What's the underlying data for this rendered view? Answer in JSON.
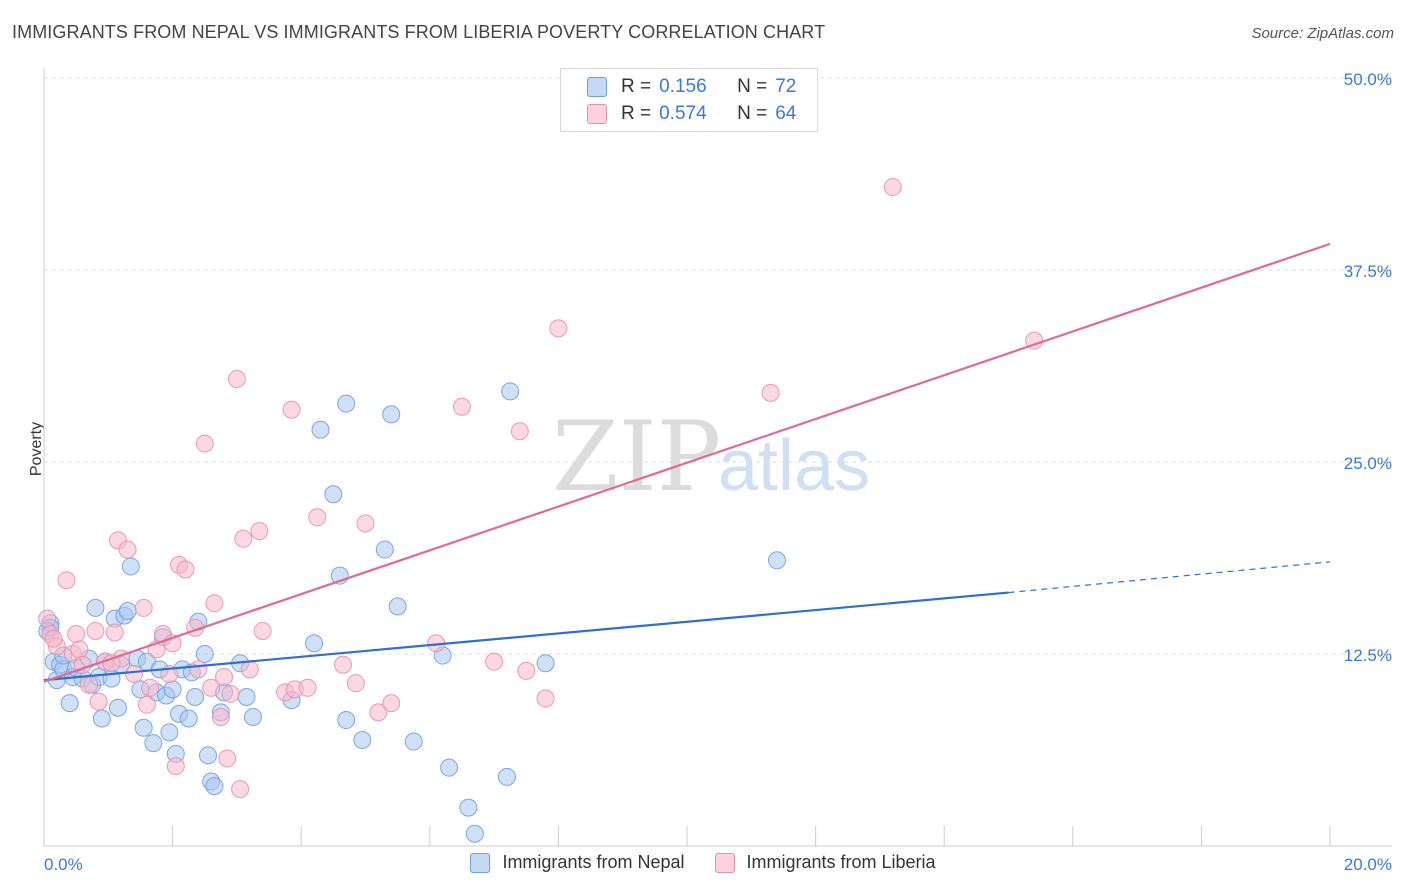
{
  "header": {
    "title": "IMMIGRANTS FROM NEPAL VS IMMIGRANTS FROM LIBERIA POVERTY CORRELATION CHART",
    "source": "Source: ZipAtlas.com"
  },
  "watermark": {
    "zip": "ZIP",
    "atlas": "atlas"
  },
  "legend_top": [
    {
      "r_key": "R =",
      "r_value": "0.156",
      "n_key": "N =",
      "n_value": "72",
      "color": "#a9c7f0"
    },
    {
      "r_key": "R =",
      "r_value": "0.574",
      "n_key": "N =",
      "n_value": "64",
      "color": "#f7b8cb"
    }
  ],
  "legend_bottom": [
    {
      "label": "Immigrants from Nepal",
      "color": "#a9c7f0"
    },
    {
      "label": "Immigrants from Liberia",
      "color": "#f7b8cb"
    }
  ],
  "chart_data": {
    "type": "scatter",
    "ylabel": "Poverty",
    "xlim": [
      0,
      20
    ],
    "ylim": [
      0,
      50
    ],
    "x_tick_labels": [
      {
        "value": 0,
        "label": "0.0%"
      },
      {
        "value": 20,
        "label": "20.0%"
      }
    ],
    "y_tick_labels": [
      {
        "value": 12.5,
        "label": "12.5%"
      },
      {
        "value": 25,
        "label": "25.0%"
      },
      {
        "value": 37.5,
        "label": "37.5%"
      },
      {
        "value": 50,
        "label": "50.0%"
      }
    ],
    "grid": true,
    "series": [
      {
        "name": "Immigrants from Nepal",
        "color": "#6f9fe0",
        "fill": "#a9c7f0",
        "trend": {
          "x": [
            0,
            15
          ],
          "y": [
            10.8,
            16.5
          ],
          "dashed_to": [
            20,
            18.5
          ],
          "color": "#2f6fd0"
        },
        "points": [
          [
            0.1,
            14.5
          ],
          [
            0.1,
            14.2
          ],
          [
            0.15,
            12.0
          ],
          [
            0.2,
            10.8
          ],
          [
            0.25,
            11.8
          ],
          [
            0.3,
            11.5
          ],
          [
            0.4,
            9.3
          ],
          [
            0.45,
            11.0
          ],
          [
            0.5,
            11.6
          ],
          [
            0.6,
            10.9
          ],
          [
            0.7,
            12.2
          ],
          [
            0.75,
            10.5
          ],
          [
            0.8,
            15.5
          ],
          [
            0.85,
            11.0
          ],
          [
            0.9,
            8.3
          ],
          [
            0.95,
            12.0
          ],
          [
            1.05,
            10.9
          ],
          [
            1.1,
            14.8
          ],
          [
            1.15,
            9.0
          ],
          [
            1.2,
            11.8
          ],
          [
            1.25,
            15.0
          ],
          [
            1.3,
            15.3
          ],
          [
            1.35,
            18.2
          ],
          [
            1.45,
            12.2
          ],
          [
            1.5,
            10.2
          ],
          [
            1.55,
            7.7
          ],
          [
            1.6,
            12.0
          ],
          [
            1.7,
            6.7
          ],
          [
            1.75,
            10.0
          ],
          [
            1.8,
            11.5
          ],
          [
            1.85,
            13.6
          ],
          [
            1.9,
            9.8
          ],
          [
            1.95,
            7.4
          ],
          [
            2.0,
            10.2
          ],
          [
            2.05,
            6.0
          ],
          [
            2.1,
            8.6
          ],
          [
            2.15,
            11.5
          ],
          [
            2.25,
            8.3
          ],
          [
            2.3,
            11.3
          ],
          [
            2.35,
            9.7
          ],
          [
            2.4,
            14.6
          ],
          [
            2.5,
            12.5
          ],
          [
            2.55,
            5.9
          ],
          [
            2.6,
            4.2
          ],
          [
            2.65,
            3.9
          ],
          [
            2.75,
            8.7
          ],
          [
            2.8,
            10.0
          ],
          [
            3.05,
            11.9
          ],
          [
            3.15,
            9.7
          ],
          [
            3.25,
            8.4
          ],
          [
            3.85,
            9.5
          ],
          [
            4.2,
            13.2
          ],
          [
            4.3,
            27.1
          ],
          [
            4.5,
            22.9
          ],
          [
            4.6,
            17.6
          ],
          [
            4.7,
            8.2
          ],
          [
            4.7,
            28.8
          ],
          [
            4.95,
            6.9
          ],
          [
            5.3,
            19.3
          ],
          [
            5.4,
            28.1
          ],
          [
            5.5,
            15.6
          ],
          [
            5.75,
            6.8
          ],
          [
            6.2,
            12.4
          ],
          [
            6.3,
            5.1
          ],
          [
            6.6,
            2.5
          ],
          [
            6.7,
            0.8
          ],
          [
            7.2,
            4.5
          ],
          [
            7.25,
            29.6
          ],
          [
            7.8,
            11.9
          ],
          [
            11.4,
            18.6
          ],
          [
            0.05,
            14.0
          ],
          [
            0.3,
            12.4
          ]
        ]
      },
      {
        "name": "Immigrants from Liberia",
        "color": "#e890ab",
        "fill": "#f7b8cb",
        "trend": {
          "x": [
            0,
            20
          ],
          "y": [
            10.7,
            39.2
          ],
          "color": "#e06a93"
        },
        "points": [
          [
            0.05,
            14.8
          ],
          [
            0.1,
            13.8
          ],
          [
            0.2,
            13.0
          ],
          [
            0.35,
            17.3
          ],
          [
            0.45,
            12.5
          ],
          [
            0.5,
            13.8
          ],
          [
            0.55,
            12.8
          ],
          [
            0.6,
            11.8
          ],
          [
            0.7,
            10.5
          ],
          [
            0.8,
            14.0
          ],
          [
            0.85,
            9.4
          ],
          [
            0.95,
            12.0
          ],
          [
            1.1,
            13.9
          ],
          [
            1.15,
            19.9
          ],
          [
            1.2,
            12.2
          ],
          [
            1.3,
            19.3
          ],
          [
            1.4,
            11.2
          ],
          [
            1.55,
            15.5
          ],
          [
            1.6,
            9.2
          ],
          [
            1.65,
            10.3
          ],
          [
            1.75,
            12.8
          ],
          [
            1.85,
            13.8
          ],
          [
            1.95,
            11.2
          ],
          [
            2.0,
            13.2
          ],
          [
            2.05,
            5.2
          ],
          [
            2.1,
            18.3
          ],
          [
            2.2,
            18.0
          ],
          [
            2.35,
            14.2
          ],
          [
            2.4,
            11.5
          ],
          [
            2.5,
            26.2
          ],
          [
            2.6,
            10.3
          ],
          [
            2.65,
            15.8
          ],
          [
            2.75,
            8.4
          ],
          [
            2.8,
            11.0
          ],
          [
            2.85,
            5.7
          ],
          [
            2.9,
            9.9
          ],
          [
            3.0,
            30.4
          ],
          [
            3.05,
            3.7
          ],
          [
            3.1,
            20.0
          ],
          [
            3.2,
            11.5
          ],
          [
            3.35,
            20.5
          ],
          [
            3.4,
            14.0
          ],
          [
            3.75,
            10.0
          ],
          [
            3.85,
            28.4
          ],
          [
            3.9,
            10.2
          ],
          [
            4.1,
            10.3
          ],
          [
            4.25,
            21.4
          ],
          [
            4.65,
            11.8
          ],
          [
            4.85,
            10.6
          ],
          [
            5.0,
            21.0
          ],
          [
            5.2,
            8.7
          ],
          [
            5.4,
            9.3
          ],
          [
            6.1,
            13.2
          ],
          [
            6.5,
            28.6
          ],
          [
            7.0,
            12.0
          ],
          [
            7.4,
            27.0
          ],
          [
            7.5,
            11.4
          ],
          [
            8.0,
            33.7
          ],
          [
            7.8,
            9.6
          ],
          [
            11.3,
            29.5
          ],
          [
            13.2,
            42.9
          ],
          [
            15.4,
            32.9
          ],
          [
            0.15,
            13.5
          ],
          [
            1.05,
            11.9
          ]
        ]
      }
    ]
  }
}
